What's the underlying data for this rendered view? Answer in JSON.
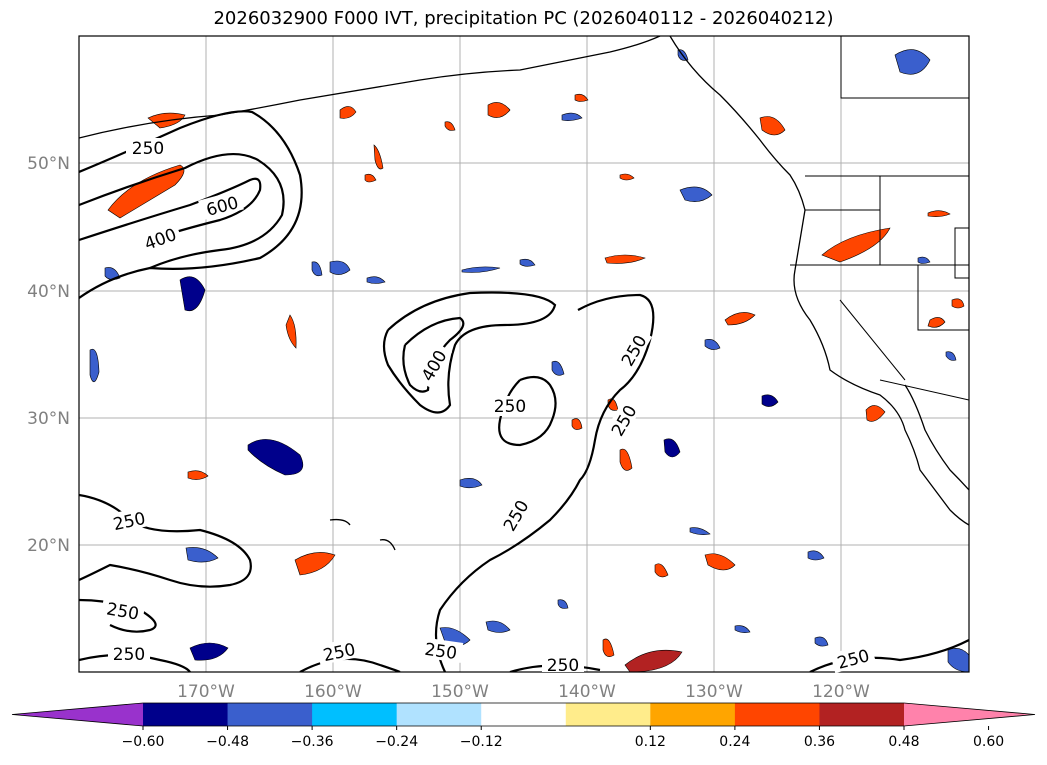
{
  "title": "2026032900 F000 IVT, precipitation PC (2026040112 - 2026040212)",
  "map": {
    "lat_labels": [
      "50°N",
      "40°N",
      "30°N",
      "20°N"
    ],
    "lon_labels": [
      "170°W",
      "160°W",
      "150°W",
      "140°W",
      "130°W",
      "120°W"
    ],
    "contour_labels": [
      {
        "text": "250"
      },
      {
        "text": "600"
      },
      {
        "text": "400"
      },
      {
        "text": "400"
      },
      {
        "text": "250"
      },
      {
        "text": "250"
      },
      {
        "text": "250"
      },
      {
        "text": "250"
      },
      {
        "text": "250"
      },
      {
        "text": "250"
      },
      {
        "text": "250"
      },
      {
        "text": "250"
      },
      {
        "text": "250"
      },
      {
        "text": "250"
      }
    ]
  },
  "colorbar": {
    "colors": [
      "#9932CC",
      "#00008B",
      "#3A5FCD",
      "#00BFFF",
      "#B0E2FF",
      "#FFFFFF",
      "#FFEC8B",
      "#FFA500",
      "#FF4500",
      "#B22222",
      "#FF82AB"
    ],
    "ticks": [
      "−0.60",
      "−0.48",
      "−0.36",
      "−0.24",
      "−0.12",
      "0.12",
      "0.24",
      "0.36",
      "0.48",
      "0.60"
    ]
  }
}
